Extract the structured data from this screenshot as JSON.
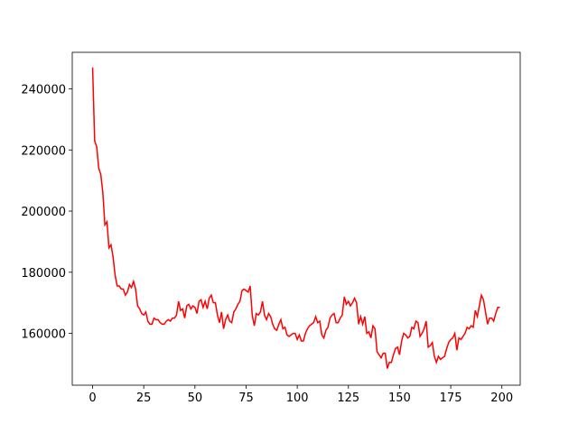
{
  "chart_data": {
    "type": "line",
    "x": [
      0,
      1,
      2,
      3,
      4,
      5,
      6,
      7,
      8,
      9,
      10,
      11,
      12,
      13,
      14,
      15,
      16,
      17,
      18,
      19,
      20,
      21,
      22,
      23,
      24,
      25,
      26,
      27,
      28,
      29,
      30,
      31,
      32,
      33,
      34,
      35,
      36,
      37,
      38,
      39,
      40,
      41,
      42,
      43,
      44,
      45,
      46,
      47,
      48,
      49,
      50,
      51,
      52,
      53,
      54,
      55,
      56,
      57,
      58,
      59,
      60,
      61,
      62,
      63,
      64,
      65,
      66,
      67,
      68,
      69,
      70,
      71,
      72,
      73,
      74,
      75,
      76,
      77,
      78,
      79,
      80,
      81,
      82,
      83,
      84,
      85,
      86,
      87,
      88,
      89,
      90,
      91,
      92,
      93,
      94,
      95,
      96,
      97,
      98,
      99,
      100,
      101,
      102,
      103,
      104,
      105,
      106,
      107,
      108,
      109,
      110,
      111,
      112,
      113,
      114,
      115,
      116,
      117,
      118,
      119,
      120,
      121,
      122,
      123,
      124,
      125,
      126,
      127,
      128,
      129,
      130,
      131,
      132,
      133,
      134,
      135,
      136,
      137,
      138,
      139,
      140,
      141,
      142,
      143,
      144,
      145,
      146,
      147,
      148,
      149,
      150,
      151,
      152,
      153,
      154,
      155,
      156,
      157,
      158,
      159,
      160,
      161,
      162,
      163,
      164,
      165,
      166,
      167,
      168,
      169,
      170,
      171,
      172,
      173,
      174,
      175,
      176,
      177,
      178,
      179,
      180,
      181,
      182,
      183,
      184,
      185,
      186,
      187,
      188,
      189,
      190,
      191,
      192,
      193,
      194,
      195,
      196,
      197,
      198,
      199
    ],
    "series": [
      {
        "color": "#ff0000",
        "values": [
          247000,
          223000,
          221000,
          214000,
          212000,
          206000,
          195500,
          196500,
          188000,
          189000,
          185000,
          179000,
          175500,
          175500,
          174500,
          174500,
          172500,
          173500,
          176000,
          175000,
          177000,
          174500,
          169000,
          168000,
          166500,
          166000,
          167000,
          164000,
          163000,
          163000,
          165000,
          164500,
          164500,
          163500,
          163000,
          163000,
          164000,
          164500,
          164000,
          165000,
          165000,
          166000,
          170500,
          167500,
          168000,
          165000,
          169000,
          169500,
          168000,
          169000,
          168500,
          166500,
          170500,
          171000,
          168500,
          170500,
          168000,
          171500,
          172500,
          170000,
          170000,
          166000,
          163500,
          167000,
          161500,
          164500,
          166000,
          164000,
          163500,
          167000,
          168000,
          169500,
          170500,
          174000,
          174500,
          174000,
          173500,
          175500,
          166000,
          162500,
          166500,
          166000,
          167000,
          170500,
          166000,
          164500,
          166500,
          165500,
          163000,
          161500,
          161000,
          163000,
          164500,
          161500,
          162000,
          159500,
          159000,
          159500,
          160000,
          160000,
          158000,
          159500,
          157500,
          157500,
          160000,
          161500,
          162500,
          163000,
          163500,
          165500,
          163500,
          164000,
          159500,
          158500,
          161000,
          162000,
          165000,
          166000,
          166500,
          163500,
          163500,
          165000,
          166000,
          172000,
          169500,
          170500,
          169000,
          170000,
          171500,
          170000,
          163000,
          165500,
          163000,
          165500,
          160000,
          160500,
          158500,
          162500,
          161500,
          154000,
          153000,
          152000,
          153500,
          153500,
          148500,
          150500,
          150500,
          153000,
          155000,
          155500,
          153000,
          157500,
          160000,
          159500,
          158500,
          159000,
          162000,
          161500,
          164000,
          163500,
          159000,
          160000,
          161500,
          164000,
          155500,
          156000,
          157000,
          152500,
          150500,
          152500,
          151500,
          152000,
          152500,
          155000,
          157000,
          158000,
          158500,
          160000,
          154500,
          158500,
          158000,
          159000,
          160000,
          162000,
          161500,
          162500,
          162000,
          167500,
          165500,
          169000,
          172500,
          171000,
          167000,
          163000,
          165000,
          165000,
          164000,
          166500,
          168500,
          168500
        ]
      }
    ],
    "xlim": [
      -9.95,
      208.95
    ],
    "ylim": [
      143050,
      251950
    ],
    "xticks": [
      0,
      25,
      50,
      75,
      100,
      125,
      150,
      175,
      200
    ],
    "yticks": [
      160000,
      180000,
      200000,
      220000,
      240000
    ]
  }
}
